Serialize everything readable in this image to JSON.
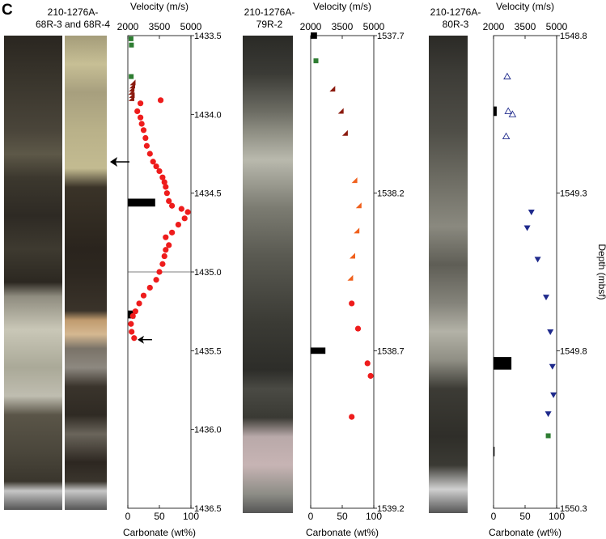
{
  "panel_label": "C",
  "chart_data": [
    {
      "type": "scatter",
      "core_label": "210-1276A-\n68R-3 and 68R-4",
      "top_axis_label": "Velocity (m/s)",
      "top_axis_ticks": [
        "2000",
        "3500",
        "5000"
      ],
      "bottom_axis_label": "Carbonate (wt%)",
      "bottom_axis_ticks": [
        "0",
        "50",
        "100"
      ],
      "xlim": [
        0,
        100
      ],
      "right_axis_ticks": [
        "1433.5",
        "1434.0",
        "1434.5",
        "1435.0",
        "1435.5",
        "1436.0",
        "1436.5"
      ],
      "ylim": [
        1433.5,
        1436.5
      ],
      "velocity_square": [
        [
          2150,
          1433.52
        ],
        [
          2170,
          1433.56
        ],
        [
          2160,
          1433.76
        ]
      ],
      "velocity_dark_triangle": [
        [
          2250,
          1433.8
        ],
        [
          2230,
          1433.82
        ],
        [
          2200,
          1433.84
        ],
        [
          2180,
          1433.86
        ],
        [
          2210,
          1433.88
        ],
        [
          2190,
          1433.9
        ]
      ],
      "carbonate_points": [
        [
          20,
          1433.93
        ],
        [
          15,
          1433.98
        ],
        [
          20,
          1434.02
        ],
        [
          22,
          1434.06
        ],
        [
          25,
          1434.1
        ],
        [
          28,
          1434.15
        ],
        [
          30,
          1434.2
        ],
        [
          35,
          1434.25
        ],
        [
          40,
          1434.3
        ],
        [
          45,
          1434.33
        ],
        [
          50,
          1434.36
        ],
        [
          55,
          1434.4
        ],
        [
          58,
          1434.43
        ],
        [
          60,
          1434.46
        ],
        [
          62,
          1434.5
        ],
        [
          65,
          1434.55
        ],
        [
          70,
          1434.58
        ],
        [
          85,
          1434.6
        ],
        [
          95,
          1434.62
        ],
        [
          90,
          1434.66
        ],
        [
          80,
          1434.7
        ],
        [
          70,
          1434.75
        ],
        [
          60,
          1434.78
        ],
        [
          65,
          1434.83
        ],
        [
          60,
          1434.86
        ],
        [
          58,
          1434.9
        ],
        [
          55,
          1434.95
        ],
        [
          50,
          1435.0
        ],
        [
          45,
          1435.05
        ],
        [
          35,
          1435.1
        ],
        [
          25,
          1435.15
        ],
        [
          18,
          1435.2
        ],
        [
          12,
          1435.25
        ],
        [
          8,
          1435.28
        ],
        [
          5,
          1435.33
        ],
        [
          6,
          1435.38
        ],
        [
          10,
          1435.42
        ],
        [
          52,
          1433.91
        ]
      ],
      "velocity_bars": [
        [
          2000,
          3300,
          1434.56,
          0.05
        ],
        [
          2000,
          2350,
          1435.27,
          0.05
        ]
      ],
      "arrow_depth": 1435.43,
      "boundary_line_depth": 1435.0
    },
    {
      "type": "scatter",
      "core_label": "210-1276A-\n79R-2",
      "top_axis_label": "Velocity (m/s)",
      "top_axis_ticks": [
        "2000",
        "3500",
        "5000"
      ],
      "bottom_axis_label": "Carbonate (wt%)",
      "bottom_axis_ticks": [
        "0",
        "50",
        "100"
      ],
      "xlim": [
        0,
        100
      ],
      "right_axis_ticks": [
        "1537.7",
        "1538.2",
        "1538.7",
        "1539.2"
      ],
      "ylim": [
        1537.7,
        1539.2
      ],
      "velocity_square": [
        [
          2250,
          1537.78
        ]
      ],
      "velocity_dark_triangle": [
        [
          3050,
          1537.87
        ],
        [
          3450,
          1537.94
        ],
        [
          3650,
          1538.01
        ]
      ],
      "velocity_light_triangle": [
        [
          4100,
          1538.16
        ],
        [
          4300,
          1538.24
        ],
        [
          4200,
          1538.32
        ],
        [
          4000,
          1538.4
        ],
        [
          3900,
          1538.47
        ]
      ],
      "carbonate_points": [
        [
          65,
          1538.55
        ],
        [
          75,
          1538.63
        ],
        [
          90,
          1538.74
        ],
        [
          95,
          1538.78
        ],
        [
          65,
          1538.91
        ]
      ],
      "velocity_bars": [
        [
          2000,
          2700,
          1538.7,
          0.02
        ],
        [
          2000,
          2300,
          1537.7,
          0.02
        ]
      ]
    },
    {
      "type": "scatter",
      "core_label": "210-1276A-\n80R-3",
      "top_axis_label": "Velocity (m/s)",
      "top_axis_ticks": [
        "2000",
        "3500",
        "5000"
      ],
      "bottom_axis_label": "Carbonate (wt%)",
      "bottom_axis_ticks": [
        "0",
        "50",
        "100"
      ],
      "xlim": [
        0,
        100
      ],
      "right_axis_ticks": [
        "1548.8",
        "1549.3",
        "1549.8",
        "1550.3"
      ],
      "right_axis_label": "Depth (mbsf)",
      "ylim": [
        1548.8,
        1550.3
      ],
      "velocity_open_triangle": [
        [
          2650,
          1548.93
        ],
        [
          2700,
          1549.04
        ],
        [
          2900,
          1549.05
        ],
        [
          2600,
          1549.12
        ]
      ],
      "velocity_down_triangle": [
        [
          3800,
          1549.36
        ],
        [
          3600,
          1549.41
        ],
        [
          4100,
          1549.51
        ],
        [
          4500,
          1549.63
        ],
        [
          4700,
          1549.74
        ],
        [
          4800,
          1549.85
        ],
        [
          4850,
          1549.94
        ],
        [
          4600,
          1550.0
        ]
      ],
      "velocity_square": [
        [
          4600,
          1550.07
        ]
      ],
      "velocity_bars": [
        [
          2000,
          2850,
          1549.84,
          0.04
        ],
        [
          2000,
          2150,
          1549.04,
          0.03
        ],
        [
          2000,
          2050,
          1550.12,
          0.03
        ]
      ]
    }
  ]
}
